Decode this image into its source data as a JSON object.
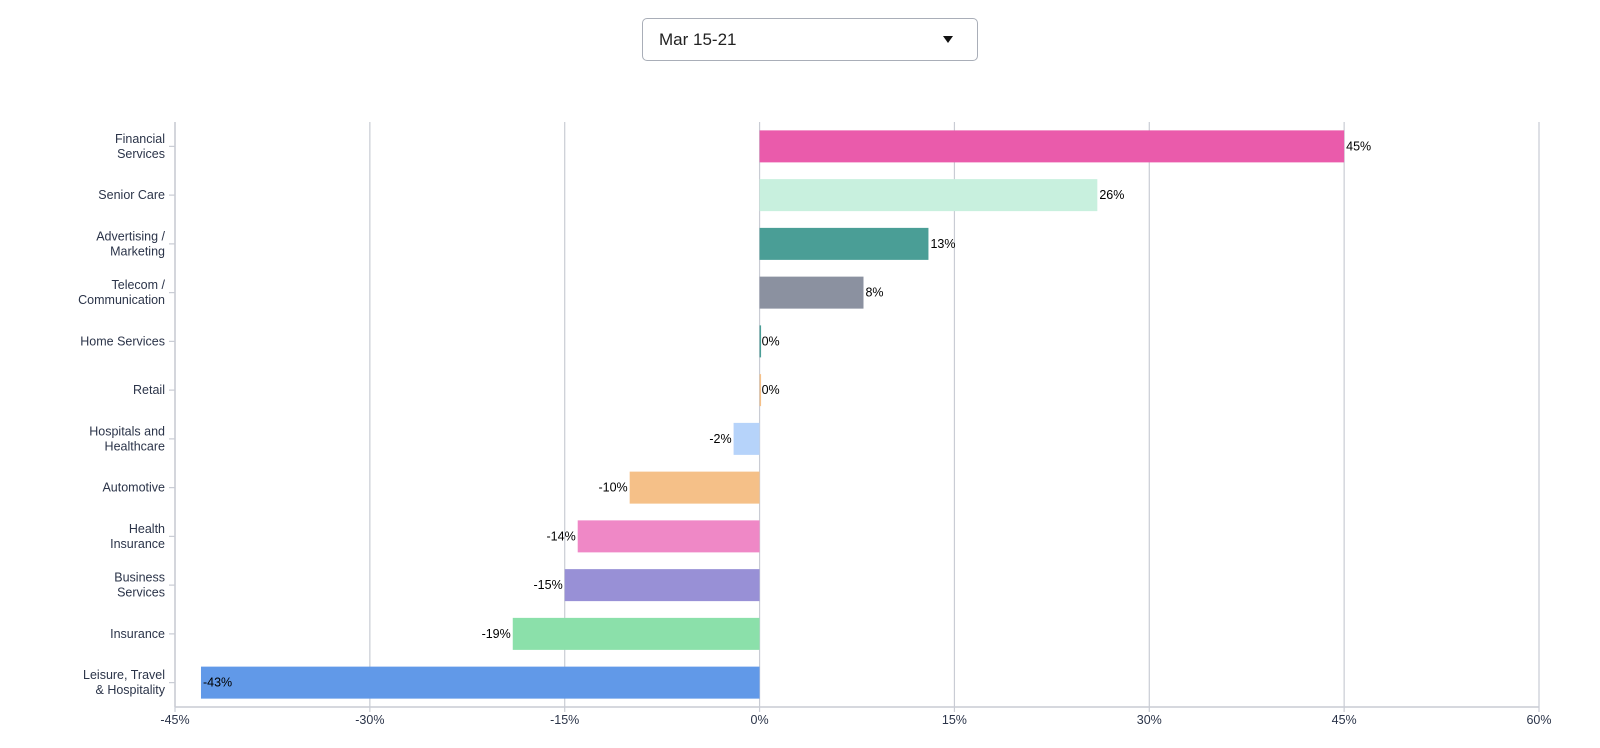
{
  "filter": {
    "selected": "Mar 15-21",
    "icon": "caret-down-icon"
  },
  "chart_data": {
    "type": "bar",
    "orientation": "horizontal",
    "categories": [
      [
        "Financial",
        "Services"
      ],
      [
        "Senior Care"
      ],
      [
        "Advertising /",
        "Marketing"
      ],
      [
        "Telecom /",
        "Communication"
      ],
      [
        "Home Services"
      ],
      [
        "Retail"
      ],
      [
        "Hospitals and",
        "Healthcare"
      ],
      [
        "Automotive"
      ],
      [
        "Health",
        "Insurance"
      ],
      [
        "Business",
        "Services"
      ],
      [
        "Insurance"
      ],
      [
        "Leisure, Travel",
        "& Hospitality"
      ]
    ],
    "values": [
      45,
      26,
      13,
      8,
      0,
      0,
      -2,
      -10,
      -14,
      -15,
      -19,
      -43
    ],
    "data_labels": [
      "45%",
      "26%",
      "13%",
      "8%",
      "0%",
      "0%",
      "-2%",
      "-10%",
      "-14%",
      "-15%",
      "-19%",
      "-43%"
    ],
    "colors": [
      "#ea5bab",
      "#c8f0de",
      "#4a9e96",
      "#8b91a0",
      "#4a9e96",
      "#f5c088",
      "#b6d3fa",
      "#f5c088",
      "#ef88c6",
      "#9890d6",
      "#8be0aa",
      "#6199e8"
    ],
    "xlim": [
      -45,
      60
    ],
    "xticks": [
      -45,
      -30,
      -15,
      0,
      15,
      30,
      45,
      60
    ],
    "xtick_labels": [
      "-45%",
      "-30%",
      "-15%",
      "0%",
      "15%",
      "30%",
      "45%",
      "60%"
    ],
    "grid": true,
    "title": "",
    "xlabel": "",
    "ylabel": ""
  }
}
